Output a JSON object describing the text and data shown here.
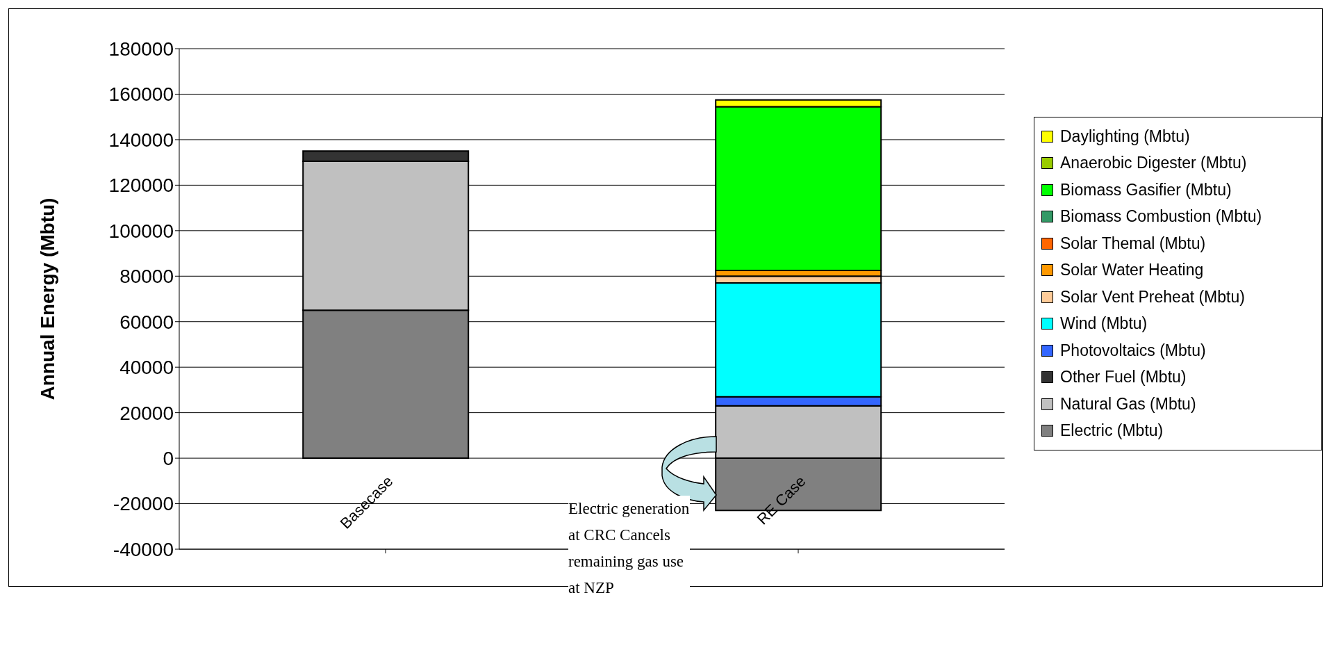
{
  "chart_data": {
    "type": "bar",
    "stacked": true,
    "ylabel": "Annual Energy (Mbtu)",
    "categories": [
      "Basecase",
      "RE Case"
    ],
    "series": [
      {
        "name": "Electric (Mbtu)",
        "color": "#808080",
        "values": [
          65000,
          -23000
        ]
      },
      {
        "name": "Natural Gas (Mbtu)",
        "color": "#c0c0c0",
        "values": [
          65500,
          23000
        ]
      },
      {
        "name": "Other Fuel (Mbtu)",
        "color": "#333333",
        "values": [
          4500,
          0
        ]
      },
      {
        "name": "Photovoltaics (Mbtu)",
        "color": "#3366ff",
        "values": [
          0,
          4000
        ]
      },
      {
        "name": "Wind (Mbtu)",
        "color": "#00ffff",
        "values": [
          0,
          50000
        ]
      },
      {
        "name": "Solar Vent Preheat (Mbtu)",
        "color": "#ffcc99",
        "values": [
          0,
          3000
        ]
      },
      {
        "name": "Solar Water Heating",
        "color": "#ff9900",
        "values": [
          0,
          2500
        ]
      },
      {
        "name": "Solar Themal (Mbtu)",
        "color": "#ff6600",
        "values": [
          0,
          0
        ]
      },
      {
        "name": "Biomass Combustion (Mbtu)",
        "color": "#339966",
        "values": [
          0,
          0
        ]
      },
      {
        "name": "Biomass Gasifier (Mbtu)",
        "color": "#00ff00",
        "values": [
          0,
          72000
        ]
      },
      {
        "name": "Anaerobic Digester (Mbtu)",
        "color": "#99cc00",
        "values": [
          0,
          0
        ]
      },
      {
        "name": "Daylighting (Mbtu)",
        "color": "#ffff00",
        "values": [
          0,
          3000
        ]
      }
    ],
    "ylim": [
      -40000,
      180000
    ],
    "yticks": [
      -40000,
      -20000,
      0,
      20000,
      40000,
      60000,
      80000,
      100000,
      120000,
      140000,
      160000,
      180000
    ],
    "grid": "y",
    "legend": "right",
    "annotations": [
      "Electric generation at CRC Cancels remaining gas use at NZP"
    ]
  }
}
